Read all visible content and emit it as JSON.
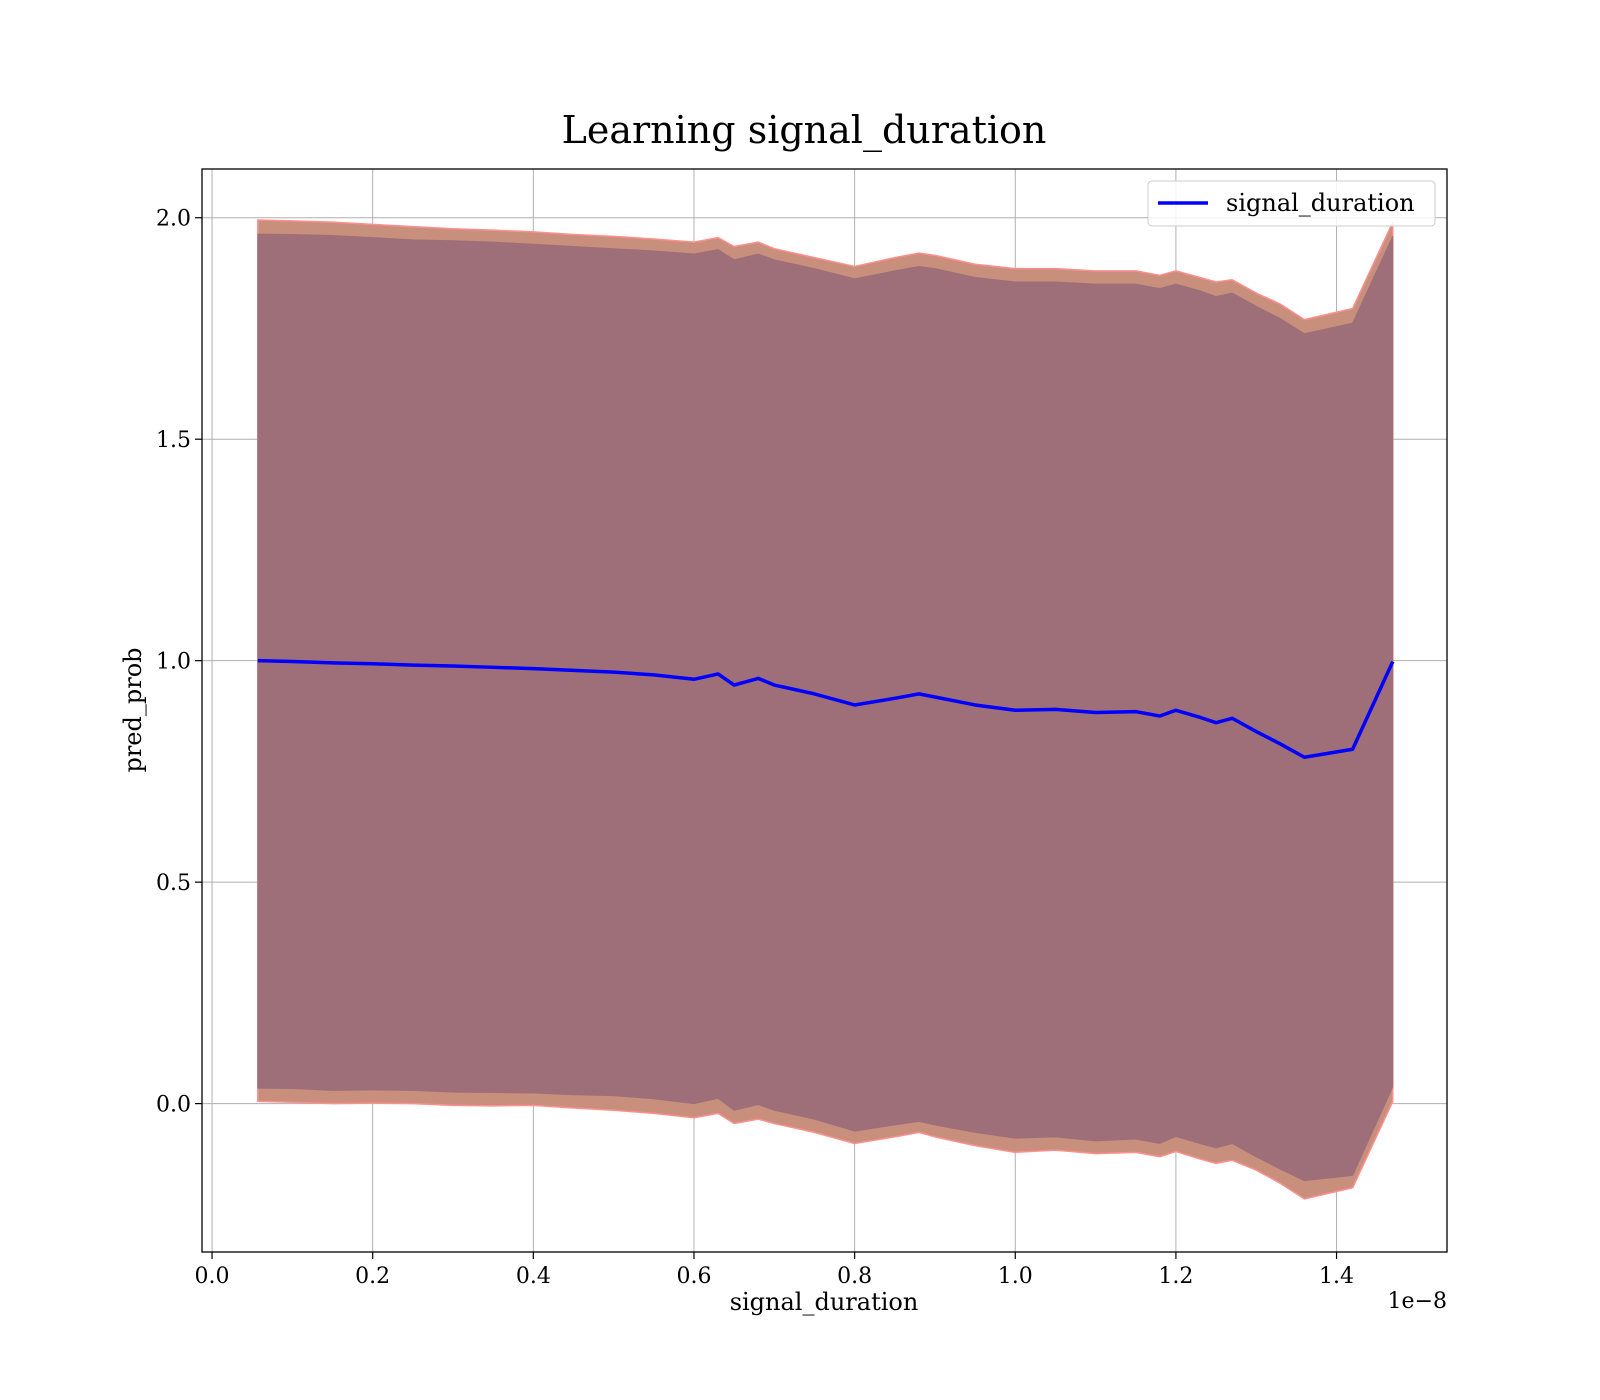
{
  "chart_data": {
    "type": "line",
    "title": "Learning signal_duration",
    "xlabel": "signal_duration",
    "ylabel": "pred_prob",
    "x_offset_label": "1e−8",
    "xlim": [
      -0.0125,
      1.5375
    ],
    "ylim": [
      -0.335,
      2.11
    ],
    "xticks": [
      0.0,
      0.2,
      0.4,
      0.6,
      0.8,
      1.0,
      1.2,
      1.4
    ],
    "xtick_labels": [
      "0.0",
      "0.2",
      "0.4",
      "0.6",
      "0.8",
      "1.0",
      "1.2",
      "1.4"
    ],
    "yticks": [
      0.0,
      0.5,
      1.0,
      1.5,
      2.0
    ],
    "ytick_labels": [
      "0.0",
      "0.5",
      "1.0",
      "1.5",
      "2.0"
    ],
    "grid": true,
    "legend_position": "top-right",
    "colors": {
      "line": "#0000ff",
      "outer_band": "#c88f7d",
      "outer_band_edge": "#ff8f8f",
      "inner_band": "#9e6f79",
      "grid": "#b0b0b0"
    },
    "series": [
      {
        "name": "signal_duration",
        "x": [
          0.057,
          0.1,
          0.15,
          0.2,
          0.25,
          0.3,
          0.35,
          0.4,
          0.45,
          0.5,
          0.55,
          0.6,
          0.63,
          0.65,
          0.68,
          0.7,
          0.75,
          0.8,
          0.85,
          0.88,
          0.9,
          0.95,
          1.0,
          1.05,
          1.1,
          1.15,
          1.18,
          1.2,
          1.23,
          1.25,
          1.27,
          1.3,
          1.33,
          1.36,
          1.42,
          1.47
        ],
        "y": [
          1.0,
          0.998,
          0.995,
          0.993,
          0.99,
          0.988,
          0.985,
          0.982,
          0.978,
          0.974,
          0.968,
          0.958,
          0.97,
          0.945,
          0.96,
          0.945,
          0.925,
          0.9,
          0.915,
          0.925,
          0.918,
          0.9,
          0.888,
          0.89,
          0.883,
          0.885,
          0.875,
          0.888,
          0.872,
          0.86,
          0.87,
          0.84,
          0.812,
          0.782,
          0.8,
          0.998
        ]
      }
    ],
    "bands": [
      {
        "role": "outer",
        "upper": [
          1.995,
          1.993,
          1.99,
          1.985,
          1.98,
          1.975,
          1.972,
          1.968,
          1.962,
          1.958,
          1.952,
          1.945,
          1.955,
          1.935,
          1.945,
          1.93,
          1.91,
          1.89,
          1.91,
          1.92,
          1.915,
          1.895,
          1.885,
          1.885,
          1.88,
          1.88,
          1.87,
          1.88,
          1.865,
          1.855,
          1.86,
          1.83,
          1.805,
          1.77,
          1.795,
          1.99
        ],
        "lower": [
          0.005,
          0.003,
          0.0,
          0.001,
          -0.0,
          -0.004,
          -0.005,
          -0.004,
          -0.01,
          -0.015,
          -0.022,
          -0.032,
          -0.022,
          -0.045,
          -0.035,
          -0.045,
          -0.065,
          -0.09,
          -0.075,
          -0.065,
          -0.075,
          -0.095,
          -0.11,
          -0.105,
          -0.113,
          -0.11,
          -0.12,
          -0.108,
          -0.125,
          -0.135,
          -0.128,
          -0.15,
          -0.18,
          -0.215,
          -0.19,
          0.005
        ]
      },
      {
        "role": "inner",
        "upper": [
          1.963,
          1.962,
          1.96,
          1.955,
          1.95,
          1.948,
          1.945,
          1.94,
          1.935,
          1.93,
          1.925,
          1.918,
          1.928,
          1.905,
          1.918,
          1.905,
          1.885,
          1.862,
          1.88,
          1.89,
          1.885,
          1.865,
          1.855,
          1.855,
          1.85,
          1.85,
          1.84,
          1.85,
          1.835,
          1.822,
          1.83,
          1.8,
          1.772,
          1.738,
          1.762,
          1.958
        ],
        "lower": [
          0.035,
          0.034,
          0.03,
          0.031,
          0.03,
          0.026,
          0.025,
          0.024,
          0.02,
          0.018,
          0.011,
          0.0,
          0.012,
          -0.015,
          -0.002,
          -0.015,
          -0.035,
          -0.062,
          -0.048,
          -0.04,
          -0.048,
          -0.065,
          -0.078,
          -0.075,
          -0.084,
          -0.08,
          -0.09,
          -0.074,
          -0.09,
          -0.1,
          -0.09,
          -0.12,
          -0.148,
          -0.174,
          -0.162,
          0.038
        ]
      }
    ]
  }
}
